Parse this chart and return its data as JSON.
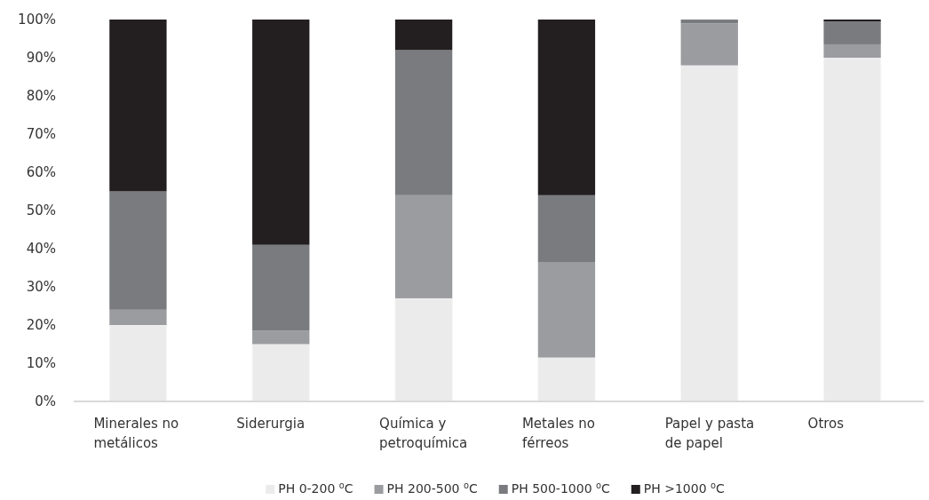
{
  "chart_data": {
    "type": "bar",
    "stacked": true,
    "categories": [
      "Minerales no metálicos",
      "Siderurgia",
      "Química y petroquímica",
      "Metales no férreos",
      "Papel y pasta de papel",
      "Otros"
    ],
    "series": [
      {
        "name": "PH 0-200 $^{o}$C",
        "color": "#ebebeb",
        "values": [
          20,
          15,
          27,
          11.5,
          88,
          90
        ]
      },
      {
        "name": "PH 200-500 $^{o}$C",
        "color": "#9b9c9f",
        "values": [
          4,
          3.5,
          27,
          25,
          11,
          3.5
        ]
      },
      {
        "name": "PH 500-1000 $^{o}$C",
        "color": "#7a7b7f",
        "values": [
          31,
          22.5,
          38,
          17.5,
          1,
          6
        ]
      },
      {
        "name": "PH >1000 $^{o}$C",
        "color": "#231f20",
        "values": [
          45,
          59,
          8,
          46,
          0,
          0.5
        ]
      }
    ],
    "ylim": [
      0,
      100
    ],
    "yticks": [
      {
        "value": 0,
        "label": "0%"
      },
      {
        "value": 10,
        "label": "10%"
      },
      {
        "value": 20,
        "label": "20%"
      },
      {
        "value": 30,
        "label": "30%"
      },
      {
        "value": 40,
        "label": "40%"
      },
      {
        "value": 50,
        "label": "50%"
      },
      {
        "value": 60,
        "label": "60%"
      },
      {
        "value": 70,
        "label": "70%"
      },
      {
        "value": 80,
        "label": "80%"
      },
      {
        "value": 90,
        "label": "90%"
      },
      {
        "value": 100,
        "label": "100%"
      }
    ],
    "grid": false,
    "legend": "bottom"
  }
}
